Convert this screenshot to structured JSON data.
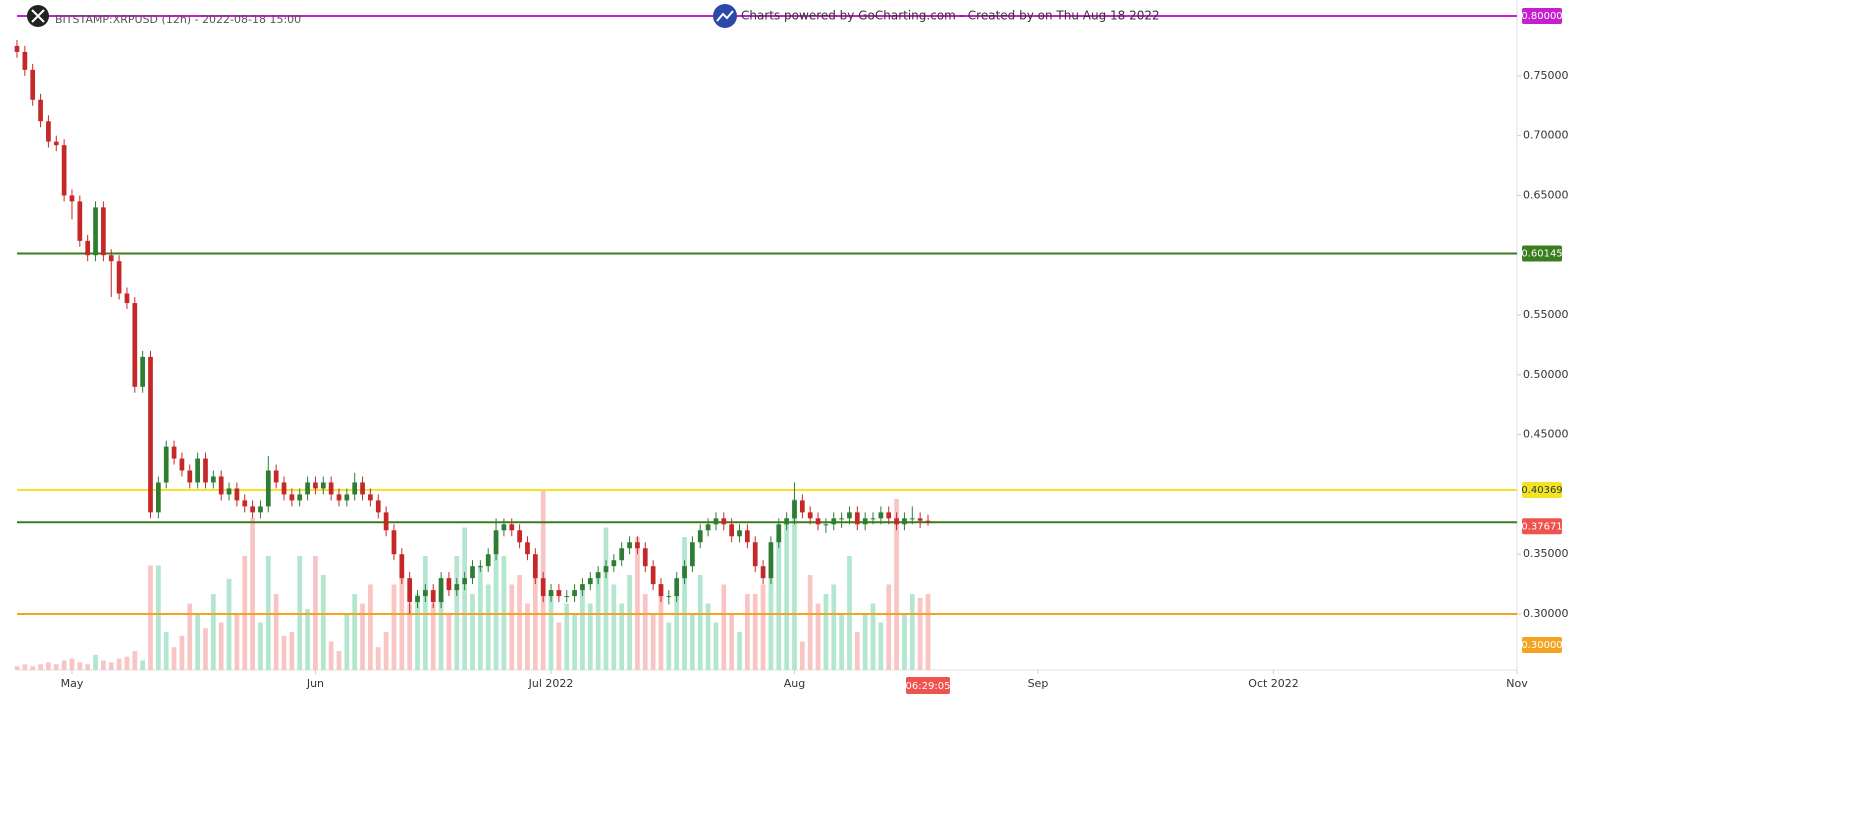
{
  "chart_data": {
    "type": "candlestick",
    "title": "BITSTAMP:XRPUSD (12h) - 2022-08-18 15:00",
    "subtitle": "Charts powered by GoCharting.com - Created by  on Thu Aug 18 2022",
    "countdown": "06:29:05",
    "up_color": "#2e7d32",
    "down_color": "#c62828",
    "volume_up_color": "#b2e6cf",
    "volume_down_color": "#f9c4c4",
    "xlim": [
      "2022-04-24",
      "2022-11-01"
    ],
    "xticks": [
      {
        "value": "2022-05-01",
        "label": "May"
      },
      {
        "value": "2022-06-01",
        "label": "Jun"
      },
      {
        "value": "2022-07-01",
        "label": "Jul 2022"
      },
      {
        "value": "2022-08-01",
        "label": "Aug"
      },
      {
        "value": "2022-09-01",
        "label": "Sep"
      },
      {
        "value": "2022-10-01",
        "label": "Oct 2022"
      },
      {
        "value": "2022-11-01",
        "label": "Nov"
      }
    ],
    "ylim": [
      0.2532,
      0.8134
    ],
    "yticks": [
      {
        "value": 0.3,
        "label": "0.30000"
      },
      {
        "value": 0.35,
        "label": "0.35000"
      },
      {
        "value": 0.45,
        "label": "0.45000"
      },
      {
        "value": 0.5,
        "label": "0.50000"
      },
      {
        "value": 0.55,
        "label": "0.55000"
      },
      {
        "value": 0.65,
        "label": "0.65000"
      },
      {
        "value": 0.7,
        "label": "0.70000"
      },
      {
        "value": 0.75,
        "label": "0.75000"
      }
    ],
    "hlines": [
      {
        "value": 0.8,
        "label": "0.80000",
        "color": "#c51fcf",
        "text_color": "#ffffff"
      },
      {
        "value": 0.60145,
        "label": "0.60145",
        "color": "#3a7d1e",
        "text_color": "#ffffff"
      },
      {
        "value": 0.40369,
        "label": "0.40369",
        "color": "#f2e424",
        "text_color": "#333333"
      },
      {
        "value": 0.3,
        "label": "0.30000",
        "color": "#f4a321",
        "text_color": "#ffffff"
      }
    ],
    "last_price": {
      "value": 0.37671,
      "label": "0.37671",
      "color": "#ef5350",
      "line_color": "#3a7d1e"
    },
    "volume_lim": [
      0,
      100
    ],
    "x": [
      "2022-04-24",
      "2022-04-25",
      "2022-04-26",
      "2022-04-27",
      "2022-04-28",
      "2022-04-29",
      "2022-04-30",
      "2022-05-01",
      "2022-05-02",
      "2022-05-03",
      "2022-05-04",
      "2022-05-05",
      "2022-05-06",
      "2022-05-07",
      "2022-05-08",
      "2022-05-09",
      "2022-05-10",
      "2022-05-11",
      "2022-05-12",
      "2022-05-13",
      "2022-05-14",
      "2022-05-15",
      "2022-05-16",
      "2022-05-17",
      "2022-05-18",
      "2022-05-19",
      "2022-05-20",
      "2022-05-21",
      "2022-05-22",
      "2022-05-23",
      "2022-05-24",
      "2022-05-25",
      "2022-05-26",
      "2022-05-27",
      "2022-05-28",
      "2022-05-29",
      "2022-05-30",
      "2022-05-31",
      "2022-06-01",
      "2022-06-02",
      "2022-06-03",
      "2022-06-04",
      "2022-06-05",
      "2022-06-06",
      "2022-06-07",
      "2022-06-08",
      "2022-06-09",
      "2022-06-10",
      "2022-06-11",
      "2022-06-12",
      "2022-06-13",
      "2022-06-14",
      "2022-06-15",
      "2022-06-16",
      "2022-06-17",
      "2022-06-18",
      "2022-06-19",
      "2022-06-20",
      "2022-06-21",
      "2022-06-22",
      "2022-06-23",
      "2022-06-24",
      "2022-06-25",
      "2022-06-26",
      "2022-06-27",
      "2022-06-28",
      "2022-06-29",
      "2022-06-30",
      "2022-07-01",
      "2022-07-02",
      "2022-07-03",
      "2022-07-04",
      "2022-07-05",
      "2022-07-06",
      "2022-07-07",
      "2022-07-08",
      "2022-07-09",
      "2022-07-10",
      "2022-07-11",
      "2022-07-12",
      "2022-07-13",
      "2022-07-14",
      "2022-07-15",
      "2022-07-16",
      "2022-07-17",
      "2022-07-18",
      "2022-07-19",
      "2022-07-20",
      "2022-07-21",
      "2022-07-22",
      "2022-07-23",
      "2022-07-24",
      "2022-07-25",
      "2022-07-26",
      "2022-07-27",
      "2022-07-28",
      "2022-07-29",
      "2022-07-30",
      "2022-07-31",
      "2022-08-01",
      "2022-08-02",
      "2022-08-03",
      "2022-08-04",
      "2022-08-05",
      "2022-08-06",
      "2022-08-07",
      "2022-08-08",
      "2022-08-09",
      "2022-08-10",
      "2022-08-11",
      "2022-08-12",
      "2022-08-13",
      "2022-08-14",
      "2022-08-15",
      "2022-08-16",
      "2022-08-17",
      "2022-08-18"
    ],
    "ohlc": [
      [
        0.775,
        0.78,
        0.765,
        0.77
      ],
      [
        0.77,
        0.775,
        0.75,
        0.755
      ],
      [
        0.755,
        0.76,
        0.725,
        0.73
      ],
      [
        0.73,
        0.735,
        0.707,
        0.712
      ],
      [
        0.712,
        0.717,
        0.69,
        0.695
      ],
      [
        0.695,
        0.7,
        0.687,
        0.692
      ],
      [
        0.692,
        0.697,
        0.645,
        0.65
      ],
      [
        0.65,
        0.655,
        0.63,
        0.645
      ],
      [
        0.645,
        0.65,
        0.607,
        0.612
      ],
      [
        0.612,
        0.617,
        0.595,
        0.6
      ],
      [
        0.6,
        0.645,
        0.595,
        0.64
      ],
      [
        0.64,
        0.645,
        0.595,
        0.6
      ],
      [
        0.6,
        0.605,
        0.565,
        0.595
      ],
      [
        0.595,
        0.6,
        0.563,
        0.568
      ],
      [
        0.568,
        0.573,
        0.555,
        0.56
      ],
      [
        0.56,
        0.565,
        0.485,
        0.49
      ],
      [
        0.49,
        0.52,
        0.485,
        0.515
      ],
      [
        0.515,
        0.52,
        0.38,
        0.385
      ],
      [
        0.385,
        0.415,
        0.38,
        0.41
      ],
      [
        0.41,
        0.445,
        0.405,
        0.44
      ],
      [
        0.44,
        0.445,
        0.425,
        0.43
      ],
      [
        0.43,
        0.435,
        0.415,
        0.42
      ],
      [
        0.42,
        0.425,
        0.405,
        0.41
      ],
      [
        0.41,
        0.435,
        0.405,
        0.43
      ],
      [
        0.43,
        0.435,
        0.405,
        0.41
      ],
      [
        0.41,
        0.42,
        0.405,
        0.415
      ],
      [
        0.415,
        0.42,
        0.395,
        0.4
      ],
      [
        0.4,
        0.41,
        0.395,
        0.405
      ],
      [
        0.405,
        0.41,
        0.39,
        0.395
      ],
      [
        0.395,
        0.4,
        0.385,
        0.39
      ],
      [
        0.39,
        0.395,
        0.38,
        0.385
      ],
      [
        0.385,
        0.395,
        0.38,
        0.39
      ],
      [
        0.39,
        0.432,
        0.385,
        0.42
      ],
      [
        0.42,
        0.425,
        0.405,
        0.41
      ],
      [
        0.41,
        0.415,
        0.395,
        0.4
      ],
      [
        0.4,
        0.405,
        0.39,
        0.395
      ],
      [
        0.395,
        0.405,
        0.39,
        0.4
      ],
      [
        0.4,
        0.415,
        0.395,
        0.41
      ],
      [
        0.41,
        0.415,
        0.4,
        0.405
      ],
      [
        0.405,
        0.415,
        0.4,
        0.41
      ],
      [
        0.41,
        0.415,
        0.395,
        0.4
      ],
      [
        0.4,
        0.405,
        0.39,
        0.395
      ],
      [
        0.395,
        0.405,
        0.39,
        0.4
      ],
      [
        0.4,
        0.418,
        0.395,
        0.41
      ],
      [
        0.41,
        0.415,
        0.395,
        0.4
      ],
      [
        0.4,
        0.405,
        0.39,
        0.395
      ],
      [
        0.395,
        0.4,
        0.38,
        0.385
      ],
      [
        0.385,
        0.39,
        0.365,
        0.37
      ],
      [
        0.37,
        0.375,
        0.345,
        0.35
      ],
      [
        0.35,
        0.355,
        0.325,
        0.33
      ],
      [
        0.33,
        0.335,
        0.3,
        0.31
      ],
      [
        0.31,
        0.32,
        0.305,
        0.315
      ],
      [
        0.315,
        0.325,
        0.31,
        0.32
      ],
      [
        0.32,
        0.325,
        0.305,
        0.31
      ],
      [
        0.31,
        0.335,
        0.305,
        0.33
      ],
      [
        0.33,
        0.335,
        0.315,
        0.32
      ],
      [
        0.32,
        0.33,
        0.315,
        0.325
      ],
      [
        0.325,
        0.335,
        0.32,
        0.33
      ],
      [
        0.33,
        0.345,
        0.325,
        0.34
      ],
      [
        0.34,
        0.345,
        0.335,
        0.34
      ],
      [
        0.34,
        0.355,
        0.335,
        0.35
      ],
      [
        0.35,
        0.38,
        0.345,
        0.37
      ],
      [
        0.37,
        0.38,
        0.365,
        0.375
      ],
      [
        0.375,
        0.38,
        0.365,
        0.37
      ],
      [
        0.37,
        0.375,
        0.355,
        0.36
      ],
      [
        0.36,
        0.365,
        0.345,
        0.35
      ],
      [
        0.35,
        0.355,
        0.325,
        0.33
      ],
      [
        0.33,
        0.335,
        0.31,
        0.315
      ],
      [
        0.315,
        0.325,
        0.31,
        0.32
      ],
      [
        0.32,
        0.325,
        0.31,
        0.315
      ],
      [
        0.315,
        0.32,
        0.31,
        0.315
      ],
      [
        0.315,
        0.325,
        0.31,
        0.32
      ],
      [
        0.32,
        0.33,
        0.315,
        0.325
      ],
      [
        0.325,
        0.335,
        0.32,
        0.33
      ],
      [
        0.33,
        0.34,
        0.325,
        0.335
      ],
      [
        0.335,
        0.345,
        0.33,
        0.34
      ],
      [
        0.34,
        0.35,
        0.335,
        0.345
      ],
      [
        0.345,
        0.36,
        0.34,
        0.355
      ],
      [
        0.355,
        0.365,
        0.35,
        0.36
      ],
      [
        0.36,
        0.365,
        0.35,
        0.355
      ],
      [
        0.355,
        0.36,
        0.335,
        0.34
      ],
      [
        0.34,
        0.345,
        0.32,
        0.325
      ],
      [
        0.325,
        0.33,
        0.31,
        0.315
      ],
      [
        0.315,
        0.32,
        0.308,
        0.315
      ],
      [
        0.315,
        0.335,
        0.31,
        0.33
      ],
      [
        0.33,
        0.345,
        0.325,
        0.34
      ],
      [
        0.34,
        0.365,
        0.335,
        0.36
      ],
      [
        0.36,
        0.375,
        0.355,
        0.37
      ],
      [
        0.37,
        0.38,
        0.365,
        0.375
      ],
      [
        0.375,
        0.385,
        0.37,
        0.38
      ],
      [
        0.38,
        0.385,
        0.37,
        0.375
      ],
      [
        0.375,
        0.38,
        0.36,
        0.365
      ],
      [
        0.365,
        0.375,
        0.36,
        0.37
      ],
      [
        0.37,
        0.375,
        0.355,
        0.36
      ],
      [
        0.36,
        0.365,
        0.335,
        0.34
      ],
      [
        0.34,
        0.345,
        0.325,
        0.33
      ],
      [
        0.33,
        0.365,
        0.325,
        0.36
      ],
      [
        0.36,
        0.38,
        0.355,
        0.375
      ],
      [
        0.375,
        0.385,
        0.37,
        0.38
      ],
      [
        0.38,
        0.41,
        0.375,
        0.395
      ],
      [
        0.395,
        0.4,
        0.38,
        0.385
      ],
      [
        0.385,
        0.39,
        0.375,
        0.38
      ],
      [
        0.38,
        0.385,
        0.37,
        0.375
      ],
      [
        0.375,
        0.38,
        0.368,
        0.375
      ],
      [
        0.375,
        0.385,
        0.37,
        0.38
      ],
      [
        0.38,
        0.385,
        0.372,
        0.38
      ],
      [
        0.38,
        0.39,
        0.375,
        0.385
      ],
      [
        0.385,
        0.39,
        0.37,
        0.375
      ],
      [
        0.375,
        0.385,
        0.37,
        0.38
      ],
      [
        0.38,
        0.385,
        0.375,
        0.38
      ],
      [
        0.38,
        0.39,
        0.375,
        0.385
      ],
      [
        0.385,
        0.39,
        0.375,
        0.38
      ],
      [
        0.38,
        0.385,
        0.37,
        0.375
      ],
      [
        0.375,
        0.385,
        0.37,
        0.38
      ],
      [
        0.38,
        0.39,
        0.375,
        0.38
      ],
      [
        0.38,
        0.385,
        0.372,
        0.378
      ],
      [
        0.378,
        0.383,
        0.374,
        0.3767
      ]
    ],
    "volume": [
      2,
      3,
      2,
      3,
      4,
      3,
      5,
      6,
      4,
      3,
      8,
      5,
      4,
      6,
      7,
      10,
      5,
      55,
      55,
      20,
      12,
      18,
      35,
      30,
      22,
      40,
      25,
      48,
      30,
      60,
      80,
      25,
      60,
      40,
      18,
      20,
      60,
      32,
      60,
      50,
      15,
      10,
      30,
      40,
      35,
      45,
      12,
      20,
      45,
      55,
      35,
      40,
      60,
      35,
      45,
      30,
      60,
      75,
      40,
      55,
      45,
      70,
      60,
      45,
      50,
      35,
      60,
      95,
      40,
      25,
      35,
      30,
      45,
      35,
      50,
      75,
      45,
      35,
      50,
      70,
      40,
      30,
      45,
      25,
      40,
      70,
      30,
      50,
      35,
      25,
      45,
      30,
      20,
      40,
      40,
      45,
      60,
      70,
      80,
      90,
      15,
      50,
      35,
      40,
      45,
      30,
      60,
      20,
      30,
      35,
      25,
      45,
      90,
      30,
      40,
      38,
      40
    ]
  }
}
